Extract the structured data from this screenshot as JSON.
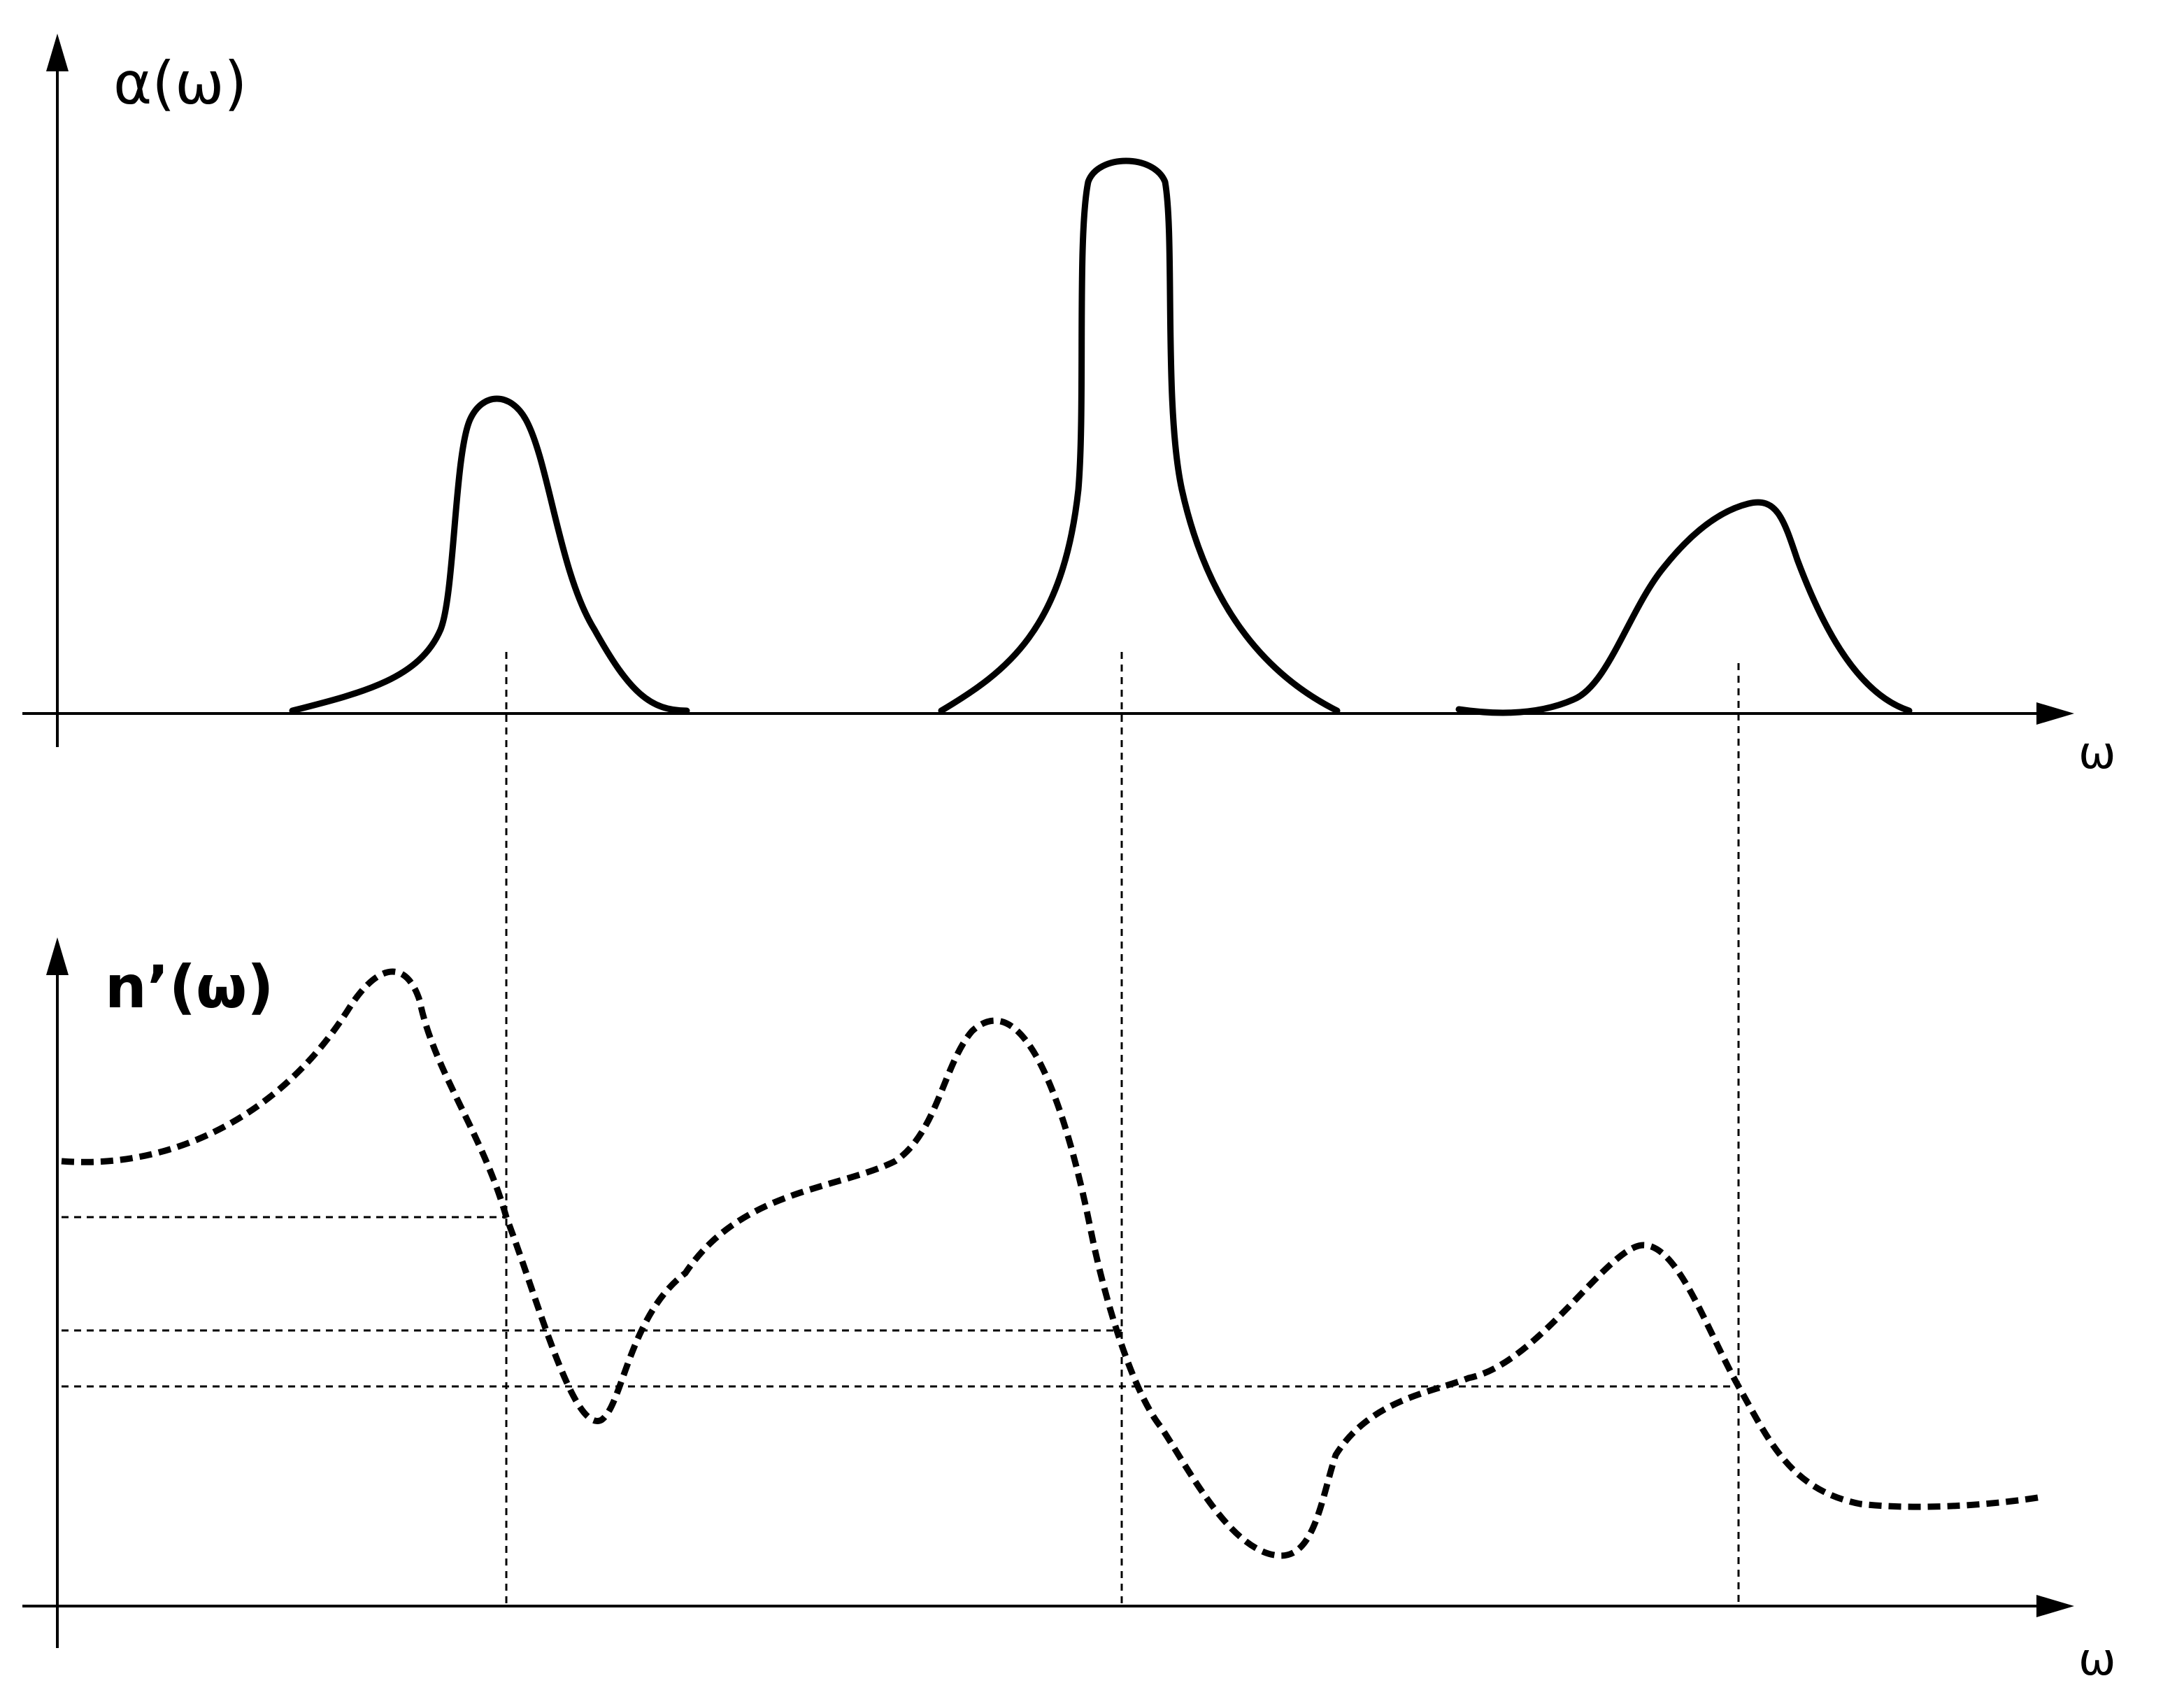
{
  "top_panel": {
    "y_label": "α(ω)",
    "x_label": "ω"
  },
  "bottom_panel": {
    "y_label": "n’(ω)",
    "x_label": "ω"
  },
  "icons": {
    "axis_arrows": "arrow-head-icon"
  }
}
